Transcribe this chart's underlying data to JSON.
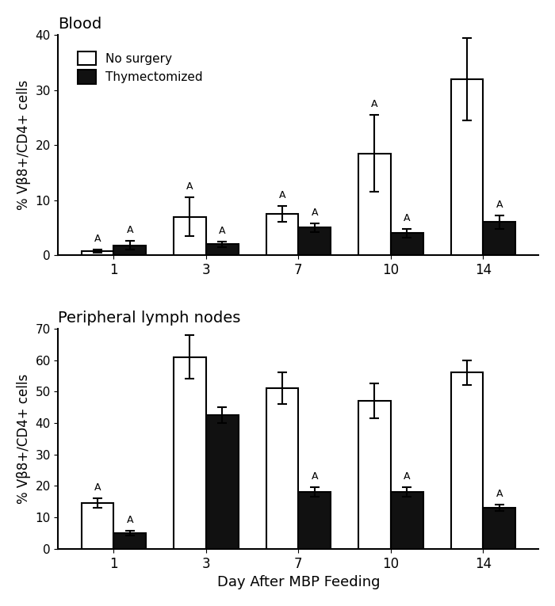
{
  "blood": {
    "title": "Blood",
    "days": [
      1,
      3,
      7,
      10,
      14
    ],
    "no_surgery_values": [
      0.8,
      7.0,
      7.5,
      18.5,
      32.0
    ],
    "no_surgery_errors": [
      0.3,
      3.5,
      1.5,
      7.0,
      7.5
    ],
    "thymectomized_values": [
      1.8,
      2.0,
      5.0,
      4.0,
      6.0
    ],
    "thymectomized_errors": [
      0.8,
      0.5,
      0.8,
      0.8,
      1.2
    ],
    "ylim": [
      0,
      40
    ],
    "yticks": [
      0,
      10,
      20,
      30,
      40
    ],
    "ylabel": "% Vβ8+/CD4+ cells",
    "annotate_A_no_surgery": [
      0,
      1,
      2,
      3
    ],
    "annotate_A_thymectomized": [
      0,
      1,
      2,
      3,
      4
    ]
  },
  "lymph": {
    "title": "Peripheral lymph nodes",
    "days": [
      1,
      3,
      7,
      10,
      14
    ],
    "no_surgery_values": [
      14.5,
      61.0,
      51.0,
      47.0,
      56.0
    ],
    "no_surgery_errors": [
      1.5,
      7.0,
      5.0,
      5.5,
      4.0
    ],
    "thymectomized_values": [
      5.0,
      42.5,
      18.0,
      18.0,
      13.0
    ],
    "thymectomized_errors": [
      0.8,
      2.5,
      1.5,
      1.5,
      1.0
    ],
    "ylim": [
      0,
      70
    ],
    "yticks": [
      0,
      10,
      20,
      30,
      40,
      50,
      60,
      70
    ],
    "ylabel": "% Vβ8+/CD4+ cells",
    "annotate_A_no_surgery": [
      0
    ],
    "annotate_A_thymectomized": [
      0,
      2,
      3,
      4
    ]
  },
  "xlabel": "Day After MBP Feeding",
  "bar_width": 0.35,
  "no_surgery_color": "#ffffff",
  "no_surgery_edgecolor": "#000000",
  "thymectomized_color": "#111111",
  "thymectomized_edgecolor": "#000000",
  "legend_labels": [
    "No surgery",
    "Thymectomized"
  ],
  "capsize": 4,
  "linewidth": 1.5
}
